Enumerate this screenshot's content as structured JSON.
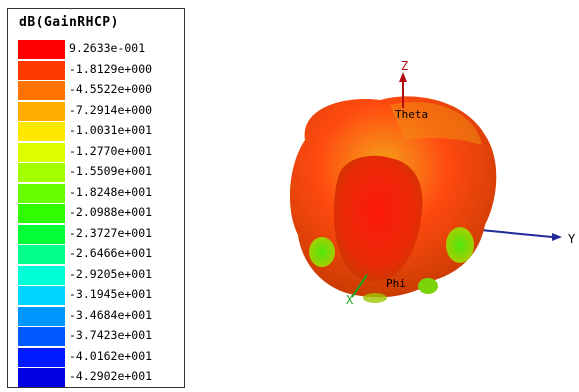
{
  "legend": {
    "title": "dB(GainRHCP)",
    "entries": [
      {
        "label": "9.2633e-001",
        "color": "#ff0000"
      },
      {
        "label": "-1.8129e+000",
        "color": "#ff3a00"
      },
      {
        "label": "-4.5522e+000",
        "color": "#ff7400"
      },
      {
        "label": "-7.2914e+000",
        "color": "#ffae00"
      },
      {
        "label": "-1.0031e+001",
        "color": "#ffe800"
      },
      {
        "label": "-1.2770e+001",
        "color": "#ddff00"
      },
      {
        "label": "-1.5509e+001",
        "color": "#a3ff00"
      },
      {
        "label": "-1.8248e+001",
        "color": "#69ff00"
      },
      {
        "label": "-2.0988e+001",
        "color": "#2fff00"
      },
      {
        "label": "-2.3727e+001",
        "color": "#00ff35"
      },
      {
        "label": "-2.6466e+001",
        "color": "#00ff8c"
      },
      {
        "label": "-2.9205e+001",
        "color": "#00ffd6"
      },
      {
        "label": "-3.1945e+001",
        "color": "#00d6ff"
      },
      {
        "label": "-3.4684e+001",
        "color": "#0096ff"
      },
      {
        "label": "-3.7423e+001",
        "color": "#0058ff"
      },
      {
        "label": "-4.0162e+001",
        "color": "#001aff"
      },
      {
        "label": "-4.2902e+001",
        "color": "#0000e0"
      }
    ]
  },
  "axes": {
    "z_label": "Z",
    "y_label": "Y",
    "theta_label": "Theta",
    "phi_label": "Phi",
    "x_label": "X"
  }
}
